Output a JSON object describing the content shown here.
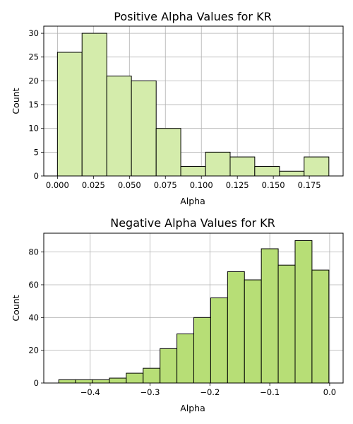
{
  "chart_data": [
    {
      "type": "bar",
      "title": "Positive Alpha Values for KR",
      "xlabel": "Alpha",
      "ylabel": "Count",
      "bar_color": "#d4ecab",
      "edge_color": "#000000",
      "grid": true,
      "xlim": [
        -0.0095,
        0.1985
      ],
      "ylim": [
        0,
        31.5
      ],
      "xticks": [
        0.0,
        0.025,
        0.05,
        0.075,
        0.1,
        0.125,
        0.15,
        0.175
      ],
      "xtick_labels": [
        "0.000",
        "0.025",
        "0.050",
        "0.075",
        "0.100",
        "0.125",
        "0.150",
        "0.175"
      ],
      "yticks": [
        0,
        5,
        10,
        15,
        20,
        25,
        30
      ],
      "ytick_labels": [
        "0",
        "5",
        "10",
        "15",
        "20",
        "25",
        "30"
      ],
      "bins": [
        {
          "x0": 0.0,
          "x1": 0.0171,
          "count": 26
        },
        {
          "x0": 0.0171,
          "x1": 0.0343,
          "count": 30
        },
        {
          "x0": 0.0343,
          "x1": 0.0514,
          "count": 21
        },
        {
          "x0": 0.0514,
          "x1": 0.0686,
          "count": 20
        },
        {
          "x0": 0.0686,
          "x1": 0.0857,
          "count": 10
        },
        {
          "x0": 0.0857,
          "x1": 0.1029,
          "count": 2
        },
        {
          "x0": 0.1029,
          "x1": 0.12,
          "count": 5
        },
        {
          "x0": 0.12,
          "x1": 0.1371,
          "count": 4
        },
        {
          "x0": 0.1371,
          "x1": 0.1543,
          "count": 2
        },
        {
          "x0": 0.1543,
          "x1": 0.1714,
          "count": 1
        },
        {
          "x0": 0.1714,
          "x1": 0.1886,
          "count": 4
        }
      ]
    },
    {
      "type": "bar",
      "title": "Negative Alpha Values for KR",
      "xlabel": "Alpha",
      "ylabel": "Count",
      "bar_color": "#b7de76",
      "edge_color": "#000000",
      "grid": true,
      "xlim": [
        -0.4775,
        0.0225
      ],
      "ylim": [
        0,
        91.5
      ],
      "xticks": [
        -0.4,
        -0.3,
        -0.2,
        -0.1,
        0.0
      ],
      "xtick_labels": [
        "−0.4",
        "−0.3",
        "−0.2",
        "−0.1",
        "0.0"
      ],
      "yticks": [
        0,
        20,
        40,
        60,
        80
      ],
      "ytick_labels": [
        "0",
        "20",
        "40",
        "60",
        "80"
      ],
      "bins": [
        {
          "x0": -0.4525,
          "x1": -0.4243,
          "count": 2
        },
        {
          "x0": -0.4243,
          "x1": -0.3961,
          "count": 2
        },
        {
          "x0": -0.3961,
          "x1": -0.3679,
          "count": 2
        },
        {
          "x0": -0.3679,
          "x1": -0.3397,
          "count": 3
        },
        {
          "x0": -0.3397,
          "x1": -0.3115,
          "count": 6
        },
        {
          "x0": -0.3115,
          "x1": -0.2833,
          "count": 9
        },
        {
          "x0": -0.2833,
          "x1": -0.2551,
          "count": 21
        },
        {
          "x0": -0.2551,
          "x1": -0.2269,
          "count": 30
        },
        {
          "x0": -0.2269,
          "x1": -0.1987,
          "count": 40
        },
        {
          "x0": -0.1987,
          "x1": -0.1705,
          "count": 52
        },
        {
          "x0": -0.1705,
          "x1": -0.1423,
          "count": 68
        },
        {
          "x0": -0.1423,
          "x1": -0.1141,
          "count": 63
        },
        {
          "x0": -0.1141,
          "x1": -0.0859,
          "count": 82
        },
        {
          "x0": -0.0859,
          "x1": -0.0577,
          "count": 72
        },
        {
          "x0": -0.0577,
          "x1": -0.0295,
          "count": 87
        },
        {
          "x0": -0.0295,
          "x1": -0.0013,
          "count": 69
        }
      ]
    }
  ]
}
